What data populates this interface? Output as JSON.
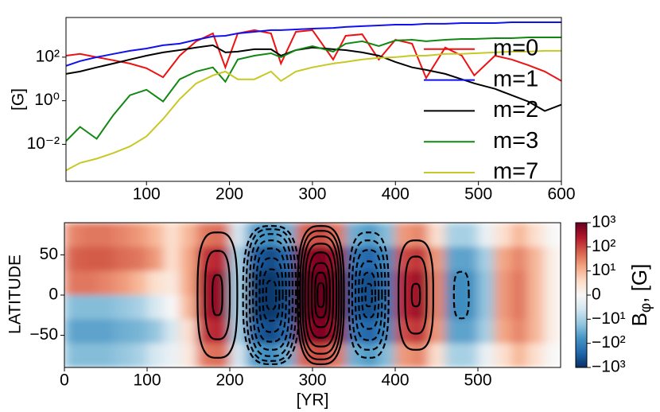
{
  "chart_data": [
    {
      "type": "line",
      "ylabel": "[G]",
      "log_y": true,
      "legend": "lower right",
      "xlim": [
        3,
        600
      ],
      "xticks": [
        100,
        200,
        300,
        400,
        500,
        600
      ],
      "ylim": [
        0.0002,
        6600
      ],
      "yticks": [
        {
          "value": 0.01,
          "label": "10⁻²"
        },
        {
          "value": 1,
          "label": "10⁰"
        },
        {
          "value": 100,
          "label": "10²"
        }
      ],
      "x": [
        3,
        20,
        40,
        60,
        80,
        100,
        120,
        140,
        160,
        180,
        195,
        210,
        230,
        250,
        262,
        280,
        300,
        325,
        340,
        360,
        380,
        400,
        420,
        437,
        460,
        480,
        495,
        520,
        540,
        560,
        580,
        600
      ],
      "series": [
        {
          "name": "m=0",
          "color": "#ee1111",
          "values": [
            117,
            140,
            100,
            72,
            51,
            31,
            12,
            117,
            537,
            1230,
            34,
            1230,
            1730,
            1230,
            51,
            1450,
            1730,
            78,
            955,
            1120,
            78,
            630,
            417,
            11,
            275,
            117,
            14.5,
            117,
            78,
            43,
            22,
            8.1
          ]
        },
        {
          "name": "m=1",
          "color": "#1111ee",
          "values": [
            40,
            66,
            100,
            140,
            195,
            250,
            350,
            417,
            630,
            890,
            955,
            1230,
            1450,
            1730,
            1730,
            1870,
            2040,
            2200,
            2420,
            2640,
            2860,
            3100,
            3100,
            3400,
            3400,
            3650,
            3650,
            3650,
            3970,
            3970,
            3970,
            3970
          ]
        },
        {
          "name": "m=2",
          "color": "#000000",
          "values": [
            17,
            22,
            34,
            51,
            78,
            117,
            165,
            210,
            275,
            350,
            165,
            180,
            230,
            230,
            117,
            210,
            275,
            230,
            210,
            165,
            117,
            60,
            34,
            26,
            17,
            9.6,
            6.3,
            3.5,
            1.8,
            0.92,
            0.34,
            0.66
          ]
        },
        {
          "name": "m=3",
          "color": "#118811",
          "values": [
            0.014,
            0.063,
            0.018,
            0.22,
            1.8,
            3.2,
            0.92,
            9.6,
            22,
            34,
            7.4,
            78,
            117,
            150,
            100,
            210,
            320,
            180,
            417,
            537,
            320,
            580,
            630,
            537,
            630,
            685,
            685,
            745,
            745,
            810,
            810,
            810
          ]
        },
        {
          "name": "m=7",
          "color": "#c8c825",
          "values": [
            0.00063,
            0.0014,
            0.0022,
            0.004,
            0.008,
            0.023,
            0.145,
            1.2,
            6.3,
            14.5,
            22,
            9.6,
            9.6,
            22,
            8.1,
            22,
            34,
            51,
            60,
            78,
            92,
            100,
            117,
            117,
            140,
            140,
            150,
            165,
            180,
            180,
            195,
            195
          ]
        }
      ]
    },
    {
      "type": "heatmap",
      "xlabel": "[YR]",
      "ylabel": "LATITUDE",
      "xlim": [
        0,
        600
      ],
      "xticks": [
        0,
        100,
        200,
        300,
        400,
        500
      ],
      "ylim": [
        -90,
        90
      ],
      "yticks": [
        {
          "value": -50,
          "label": "−50"
        },
        0,
        50
      ],
      "x_edges": [
        0,
        20,
        40,
        60,
        80,
        100,
        120,
        140,
        160,
        180,
        200,
        220,
        240,
        260,
        280,
        300,
        320,
        340,
        360,
        380,
        400,
        420,
        440,
        460,
        480,
        500,
        520,
        540,
        560,
        580,
        600
      ],
      "lat_edges": [
        90,
        60,
        30,
        0,
        -30,
        -60,
        -90
      ],
      "z": [
        [
          30,
          60,
          40,
          -20,
          -40,
          -20
        ],
        [
          40,
          70,
          40,
          -20,
          -40,
          -20
        ],
        [
          40,
          70,
          30,
          -20,
          -40,
          -20
        ],
        [
          30,
          50,
          20,
          -15,
          -30,
          -15
        ],
        [
          20,
          40,
          10,
          -10,
          -25,
          -10
        ],
        [
          10,
          20,
          5,
          -5,
          -15,
          -5
        ],
        [
          5,
          5,
          3,
          0,
          -5,
          -2
        ],
        [
          10,
          15,
          15,
          10,
          5,
          3
        ],
        [
          40,
          150,
          300,
          300,
          150,
          40
        ],
        [
          50,
          200,
          500,
          500,
          200,
          50
        ],
        [
          -5,
          -10,
          -10,
          -10,
          -10,
          -5
        ],
        [
          -50,
          -300,
          -600,
          -600,
          -300,
          -50
        ],
        [
          -80,
          -500,
          -900,
          -900,
          -500,
          -80
        ],
        [
          -30,
          -200,
          -400,
          -400,
          -200,
          -30
        ],
        [
          60,
          400,
          700,
          700,
          400,
          60
        ],
        [
          100,
          700,
          1000,
          1000,
          700,
          100
        ],
        [
          40,
          300,
          600,
          600,
          300,
          40
        ],
        [
          -30,
          -150,
          -300,
          -300,
          -150,
          -30
        ],
        [
          -50,
          -250,
          -500,
          -500,
          -250,
          -50
        ],
        [
          -20,
          -80,
          -150,
          -150,
          -80,
          -20
        ],
        [
          20,
          100,
          200,
          200,
          100,
          20
        ],
        [
          30,
          150,
          400,
          400,
          150,
          30
        ],
        [
          5,
          20,
          30,
          30,
          20,
          5
        ],
        [
          -10,
          -40,
          -80,
          -80,
          -40,
          -10
        ],
        [
          -10,
          -40,
          -70,
          -70,
          -40,
          -10
        ],
        [
          -2,
          -10,
          -15,
          -15,
          -10,
          -2
        ],
        [
          5,
          15,
          20,
          20,
          15,
          5
        ],
        [
          10,
          30,
          40,
          40,
          30,
          10
        ],
        [
          5,
          10,
          10,
          10,
          10,
          5
        ],
        [
          0,
          2,
          2,
          2,
          2,
          0
        ]
      ],
      "colorbar": {
        "label": [
          "B",
          "φ",
          ", [G]"
        ],
        "scale": "symlog",
        "linthresh": 10,
        "lim": [
          -1000,
          1000
        ],
        "ticks": [
          {
            "value": 1000,
            "label": "10³"
          },
          {
            "value": 100,
            "label": "10²"
          },
          {
            "value": 10,
            "label": "10¹"
          },
          0,
          {
            "value": -10,
            "label": "−10¹"
          },
          {
            "value": -100,
            "label": "−10²"
          },
          {
            "value": -1000,
            "label": "−10³"
          }
        ],
        "colormap": [
          "#053061",
          "#2166ac",
          "#4393c3",
          "#92c5de",
          "#d1e5f0",
          "#f7f7f7",
          "#fddbc7",
          "#f4a582",
          "#d6604d",
          "#b2182b",
          "#67001f"
        ]
      },
      "contours": [
        {
          "x": 185,
          "lat": 0,
          "style": "solid",
          "rx": [
            24,
            15,
            6
          ],
          "ry": [
            78,
            55,
            25
          ]
        },
        {
          "x": 250,
          "lat": 0,
          "style": "dashed",
          "rx": [
            34,
            30,
            26,
            22,
            18,
            14,
            10,
            6
          ],
          "ry": [
            86,
            82,
            76,
            68,
            58,
            46,
            32,
            18
          ]
        },
        {
          "x": 310,
          "lat": 0,
          "style": "solid",
          "rx": [
            28,
            25,
            22,
            19,
            15,
            11,
            7,
            4
          ],
          "ry": [
            86,
            80,
            73,
            64,
            53,
            40,
            28,
            15
          ]
        },
        {
          "x": 368,
          "lat": 0,
          "style": "dashed",
          "rx": [
            24,
            20,
            16,
            12,
            8,
            4
          ],
          "ry": [
            78,
            68,
            56,
            42,
            28,
            14
          ]
        },
        {
          "x": 425,
          "lat": 0,
          "style": "solid",
          "rx": [
            21,
            13,
            5
          ],
          "ry": [
            68,
            48,
            14
          ]
        },
        {
          "x": 480,
          "lat": 0,
          "style": "dashed",
          "rx": [
            9
          ],
          "ry": [
            29
          ]
        }
      ]
    }
  ]
}
